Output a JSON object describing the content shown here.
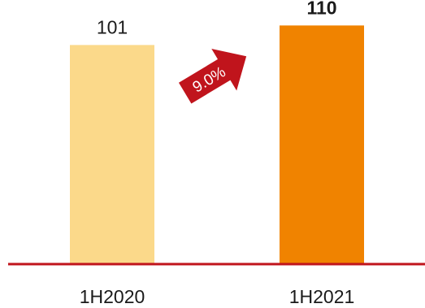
{
  "chart_data": {
    "type": "bar",
    "categories": [
      "1H2020",
      "1H2021"
    ],
    "values": [
      101,
      110
    ],
    "value_labels": [
      "101",
      "110"
    ],
    "growth_annotation": "9.0%",
    "ylim": [
      0,
      115
    ],
    "grid": false,
    "colors": {
      "bars": [
        "#FBD98A",
        "#F08300"
      ],
      "baseline": "#C0141C",
      "arrow": "#C0141C",
      "text": "#1a1a1a"
    }
  }
}
